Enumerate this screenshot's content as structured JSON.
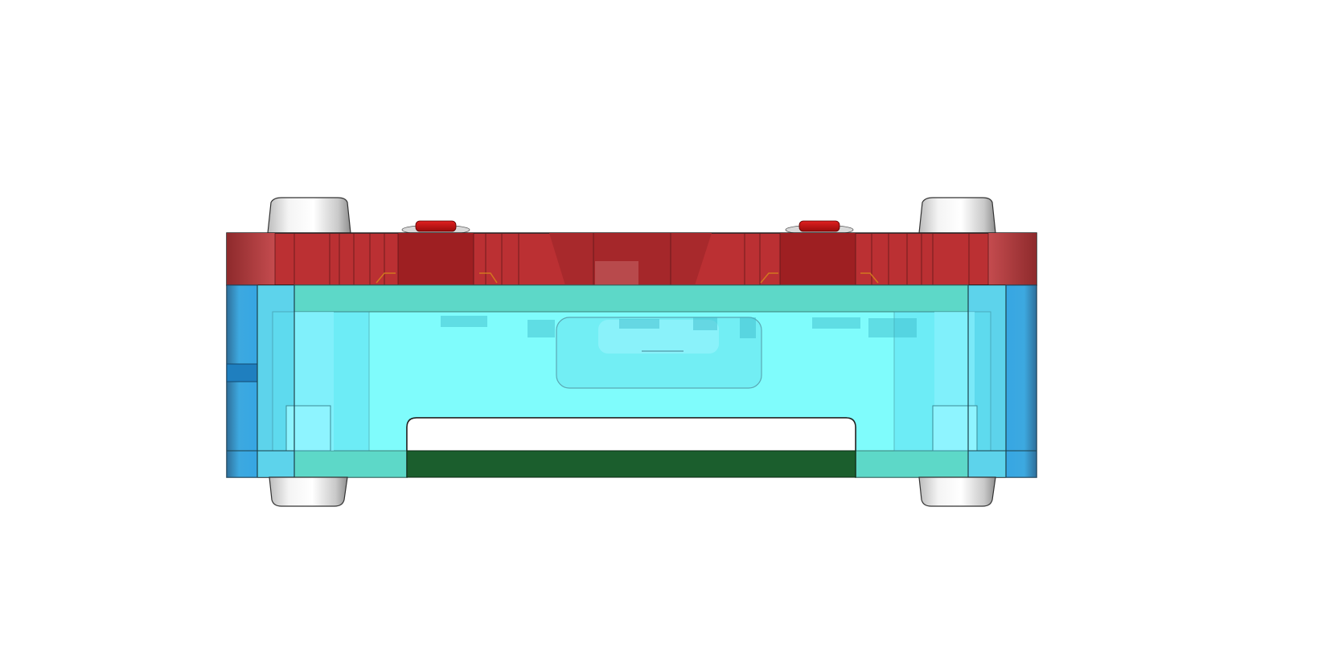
{
  "scene": {
    "background_color": "#ffffff",
    "parts": {
      "top_case": {
        "color": "#b3262a"
      },
      "bottom_case": {
        "color": "#7ffcfc"
      },
      "side_rails": {
        "color": "#3aa9df"
      },
      "pcb": {
        "color": "#1b5e2d"
      },
      "standoffs": {
        "color": "#dedede",
        "count": 4
      },
      "buttons": {
        "color": "#cc1010",
        "count": 2
      }
    }
  }
}
